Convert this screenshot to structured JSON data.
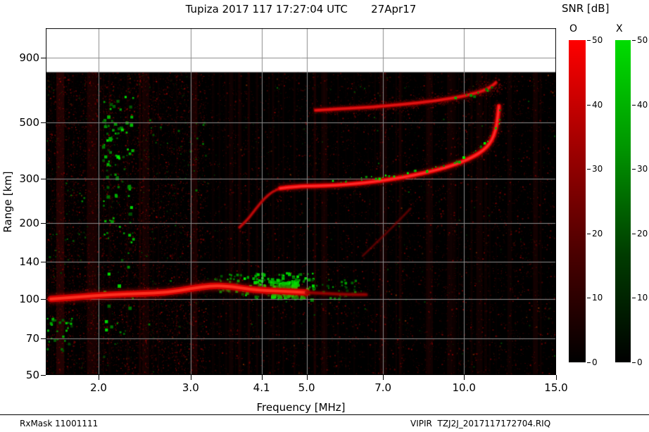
{
  "title": "Tupiza 2017 117 17:27:04 UTC       27Apr17",
  "colorbar": {
    "title": "SNR [dB]",
    "o_label": "O",
    "x_label": "X",
    "ticks": [
      0,
      10,
      20,
      30,
      40,
      50
    ],
    "min": 0,
    "max": 50,
    "o_stops": [
      "#000000",
      "#4a0000",
      "#a00000",
      "#ff0000"
    ],
    "x_stops": [
      "#000000",
      "#003c00",
      "#009600",
      "#00dd00"
    ]
  },
  "footer": {
    "left": "RxMask 11001111",
    "right": "VIPIR  TZJ2J_2017117172704.RIQ"
  },
  "chart_data": {
    "type": "heatmap",
    "subtype": "ionogram",
    "title": "Tupiza 2017 117 17:27:04 UTC 27Apr17",
    "xlabel": "Frequency [MHz]",
    "ylabel": "Range [km]",
    "x_scale": "log",
    "y_scale": "log",
    "xlim": [
      1.585,
      15
    ],
    "ylim": [
      50,
      1180
    ],
    "x_ticks": [
      2.0,
      3.0,
      4.1,
      5.0,
      7.0,
      10.0,
      15.0
    ],
    "x_tick_labels": [
      "2.0",
      "3.0",
      "4.1",
      "5.0",
      "7.0",
      "10.0",
      "15.0"
    ],
    "y_ticks": [
      50,
      70,
      100,
      140,
      200,
      300,
      500,
      900
    ],
    "y_tick_labels": [
      "50",
      "70",
      "100",
      "140",
      "200",
      "300",
      "500",
      "900"
    ],
    "max_data_range_km": 790,
    "background": "#000000",
    "grid_color": "#8c8c8c",
    "noise": {
      "seed": 1337,
      "count": 16000,
      "streaks": 55,
      "left_fmax": 3.2,
      "left_count": 5200
    },
    "rfi_bands": [
      {
        "f": [
          1.66,
          1.72
        ],
        "alpha": 0.22
      },
      {
        "f": [
          1.9,
          1.99
        ],
        "alpha": 0.16
      },
      {
        "f": [
          2.42,
          2.5
        ],
        "alpha": 0.12
      },
      {
        "f": [
          3.0,
          3.09
        ],
        "alpha": 0.16
      },
      {
        "f": [
          3.55,
          3.62
        ],
        "alpha": 0.1
      },
      {
        "f": [
          5.33,
          5.48
        ],
        "alpha": 0.1
      },
      {
        "f": [
          6.9,
          7.12
        ],
        "alpha": 0.13
      },
      {
        "f": [
          7.5,
          7.62
        ],
        "alpha": 0.08
      },
      {
        "f": [
          8.45,
          8.72
        ],
        "alpha": 0.11
      },
      {
        "f": [
          9.28,
          9.52
        ],
        "alpha": 0.11
      },
      {
        "f": [
          10.55,
          10.85
        ],
        "alpha": 0.1
      },
      {
        "f": [
          12.1,
          12.35
        ],
        "alpha": 0.08
      },
      {
        "f": [
          13.55,
          13.85
        ],
        "alpha": 0.13
      }
    ],
    "traces": [
      {
        "name": "E-layer O-mode",
        "color": "#d40000",
        "core": "#ff3020",
        "width": 9,
        "core_width": 4,
        "alpha": 0.95,
        "blur": 6,
        "fuzz": {
          "spread": 6,
          "count": 600,
          "bright": 120
        },
        "points": [
          [
            1.62,
            100
          ],
          [
            1.85,
            102
          ],
          [
            2.1,
            104
          ],
          [
            2.4,
            105
          ],
          [
            2.7,
            106
          ],
          [
            3.0,
            110
          ],
          [
            3.3,
            113
          ],
          [
            3.6,
            112
          ],
          [
            3.9,
            109
          ],
          [
            4.2,
            108
          ],
          [
            4.6,
            107
          ],
          [
            5.0,
            106
          ]
        ]
      },
      {
        "name": "E-layer extension",
        "color": "#8a0000",
        "core": "#b00000",
        "width": 5,
        "core_width": 2,
        "alpha": 0.6,
        "blur": 4,
        "points": [
          [
            5.0,
            106
          ],
          [
            5.5,
            105
          ],
          [
            6.0,
            104
          ],
          [
            6.5,
            104
          ]
        ]
      },
      {
        "name": "F-trace leading edge",
        "color": "#aa0000",
        "core": "#c81010",
        "width": 4,
        "core_width": 2,
        "alpha": 0.7,
        "blur": 3,
        "points": [
          [
            3.72,
            192
          ],
          [
            3.85,
            205
          ],
          [
            4.0,
            228
          ],
          [
            4.15,
            250
          ],
          [
            4.3,
            266
          ],
          [
            4.45,
            274
          ]
        ]
      },
      {
        "name": "F-layer O-mode",
        "color": "#e00000",
        "core": "#ff2a2a",
        "width": 6,
        "core_width": 3,
        "alpha": 0.95,
        "blur": 5,
        "fuzz": {
          "spread": 6,
          "count": 500,
          "bright": 110
        },
        "points": [
          [
            4.45,
            274
          ],
          [
            4.8,
            279
          ],
          [
            5.2,
            280
          ],
          [
            5.7,
            282
          ],
          [
            6.2,
            286
          ],
          [
            6.7,
            291
          ],
          [
            7.2,
            297
          ],
          [
            7.7,
            304
          ],
          [
            8.2,
            312
          ],
          [
            8.7,
            321
          ],
          [
            9.2,
            331
          ],
          [
            9.7,
            343
          ],
          [
            10.1,
            355
          ],
          [
            10.5,
            369
          ],
          [
            10.9,
            388
          ],
          [
            11.2,
            412
          ],
          [
            11.4,
            442
          ],
          [
            11.55,
            487
          ],
          [
            11.62,
            540
          ],
          [
            11.66,
            580
          ]
        ]
      },
      {
        "name": "F-layer second hop",
        "color": "#c00000",
        "core": "#e81818",
        "width": 5,
        "core_width": 2.5,
        "alpha": 0.85,
        "blur": 4,
        "fuzz": {
          "spread": 11,
          "count": 800,
          "bright": 110
        },
        "points": [
          [
            5.2,
            558
          ],
          [
            5.7,
            564
          ],
          [
            6.2,
            570
          ],
          [
            6.7,
            576
          ],
          [
            7.2,
            583
          ],
          [
            7.7,
            590
          ],
          [
            8.2,
            598
          ],
          [
            8.7,
            607
          ],
          [
            9.2,
            617
          ],
          [
            9.7,
            628
          ],
          [
            10.1,
            639
          ],
          [
            10.5,
            652
          ],
          [
            10.9,
            668
          ],
          [
            11.15,
            683
          ],
          [
            11.35,
            700
          ],
          [
            11.5,
            718
          ]
        ]
      },
      {
        "name": "oblique faint echo",
        "color": "#8a0000",
        "core": "#8a0000",
        "width": 3,
        "core_width": 1,
        "alpha": 0.35,
        "blur": 3,
        "points": [
          [
            6.4,
            148
          ],
          [
            6.9,
            172
          ],
          [
            7.4,
            198
          ],
          [
            7.9,
            228
          ]
        ]
      }
    ],
    "x_mode_traces": [
      {
        "name": "X-mode F-layer",
        "step": 5,
        "size": 3,
        "jitter": 3,
        "bright": [
          110,
          255
        ],
        "points": [
          [
            5.4,
            292
          ],
          [
            6.0,
            297
          ],
          [
            6.6,
            303
          ],
          [
            7.2,
            310
          ],
          [
            7.8,
            318
          ],
          [
            8.4,
            327
          ],
          [
            9.0,
            338
          ],
          [
            9.5,
            350
          ],
          [
            10.0,
            364
          ],
          [
            10.4,
            379
          ],
          [
            10.8,
            399
          ],
          [
            11.1,
            424
          ],
          [
            11.3,
            452
          ]
        ]
      },
      {
        "name": "X-mode second hop",
        "step": 6,
        "size": 3,
        "jitter": 3,
        "bright": [
          100,
          220
        ],
        "points": [
          [
            9.4,
            622
          ],
          [
            9.9,
            633
          ],
          [
            10.3,
            645
          ],
          [
            10.7,
            660
          ],
          [
            11.0,
            674
          ],
          [
            11.2,
            686
          ]
        ]
      },
      {
        "name": "X-mode asymptote",
        "step": 5,
        "size": 3,
        "jitter": 3,
        "bright": [
          100,
          220
        ],
        "points": [
          [
            11.5,
            470
          ],
          [
            11.6,
            520
          ],
          [
            11.65,
            565
          ]
        ]
      }
    ],
    "green_regions": [
      {
        "f": [
          2.03,
          2.32
        ],
        "r": [
          58,
          640
        ],
        "count": 110,
        "size": [
          2,
          5
        ],
        "bright": [
          60,
          230
        ]
      },
      {
        "f": [
          1.59,
          1.78
        ],
        "r": [
          60,
          85
        ],
        "count": 30,
        "size": [
          2,
          4
        ],
        "bright": [
          60,
          200
        ]
      },
      {
        "f": [
          1.59,
          1.9
        ],
        "r": [
          90,
          300
        ],
        "count": 25,
        "size": [
          1,
          3
        ],
        "bright": [
          40,
          140
        ]
      },
      {
        "f": [
          3.75,
          5.15
        ],
        "r": [
          100,
          128
        ],
        "count": 130,
        "size": [
          2,
          5
        ],
        "bright": [
          70,
          240
        ]
      },
      {
        "f": [
          4.25,
          4.8
        ],
        "r": [
          103,
          118
        ],
        "count": 90,
        "size": [
          3,
          6
        ],
        "bright": [
          150,
          255
        ]
      },
      {
        "f": [
          3.3,
          3.75
        ],
        "r": [
          108,
          126
        ],
        "count": 35,
        "size": [
          2,
          4
        ],
        "bright": [
          60,
          180
        ]
      },
      {
        "f": [
          5.15,
          6.2
        ],
        "r": [
          100,
          120
        ],
        "count": 30,
        "size": [
          2,
          4
        ],
        "bright": [
          50,
          160
        ]
      },
      {
        "f": [
          2.4,
          3.2
        ],
        "r": [
          60,
          520
        ],
        "count": 40,
        "size": [
          1,
          3
        ],
        "bright": [
          40,
          130
        ]
      }
    ]
  }
}
